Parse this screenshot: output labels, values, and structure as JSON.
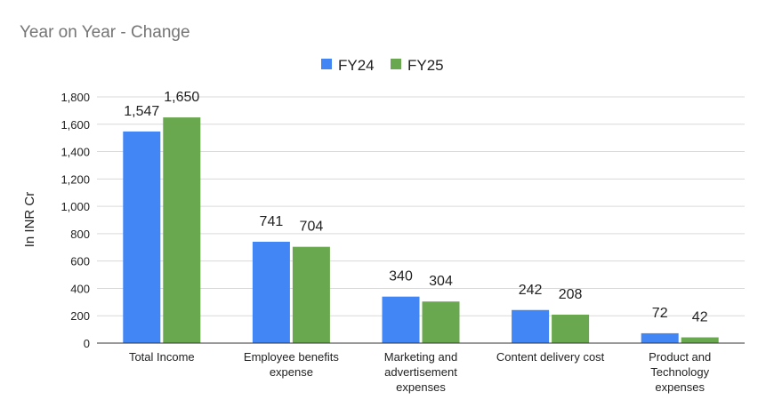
{
  "chart_data": {
    "type": "bar",
    "title": "Year on Year - Change",
    "xlabel": "",
    "ylabel": "In INR Cr",
    "ylim": [
      0,
      1800
    ],
    "yticks": [
      "0",
      "200",
      "400",
      "600",
      "800",
      "1,000",
      "1,200",
      "1,400",
      "1,600",
      "1,800"
    ],
    "grid": true,
    "legend_position": "top-center",
    "categories": [
      [
        "Total Income"
      ],
      [
        "Employee benefits",
        "expense"
      ],
      [
        "Marketing and",
        "advertisement",
        "expenses"
      ],
      [
        "Content delivery cost"
      ],
      [
        "Product and",
        "Technology",
        "expenses"
      ]
    ],
    "series": [
      {
        "name": "FY24",
        "color": "#4285f4",
        "values": [
          1547,
          741,
          340,
          242,
          72
        ],
        "labels": [
          "1,547",
          "741",
          "340",
          "242",
          "72"
        ]
      },
      {
        "name": "FY25",
        "color": "#6aa84f",
        "values": [
          1650,
          704,
          304,
          208,
          42
        ],
        "labels": [
          "1,650",
          "704",
          "304",
          "208",
          "42"
        ]
      }
    ]
  }
}
